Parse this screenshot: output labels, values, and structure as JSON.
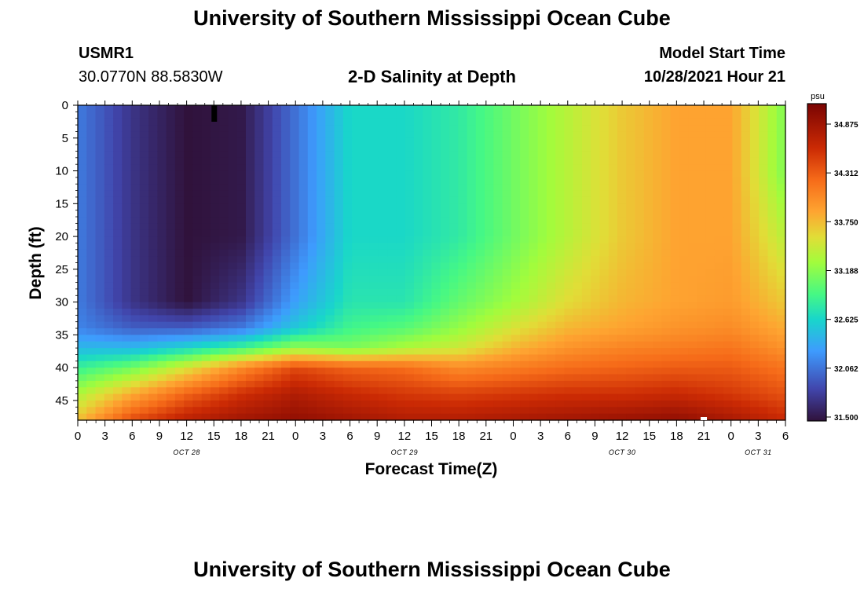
{
  "header": {
    "title": "University of Southern Mississippi Ocean Cube",
    "station": "USMR1",
    "coords": "30.0770N  88.5830W",
    "subtitle": "2-D Salinity at Depth",
    "start_label": "Model Start Time",
    "start_value": "10/28/2021 Hour 21"
  },
  "footer": {
    "title": "University of Southern Mississippi Ocean Cube"
  },
  "chart_data": {
    "type": "heatmap",
    "title": "2-D Salinity at Depth",
    "xlabel": "Forecast Time(Z)",
    "ylabel": "Depth (ft)",
    "x_ticks": [
      "0",
      "3",
      "6",
      "9",
      "12",
      "15",
      "18",
      "21",
      "0",
      "3",
      "6",
      "9",
      "12",
      "15",
      "18",
      "21",
      "0",
      "3",
      "6",
      "9",
      "12",
      "15",
      "18",
      "21",
      "0",
      "3",
      "6"
    ],
    "date_labels": [
      {
        "label": "OCT 28",
        "tick_index": 4
      },
      {
        "label": "OCT 29",
        "tick_index": 12
      },
      {
        "label": "OCT 30",
        "tick_index": 20
      },
      {
        "label": "OCT 31",
        "tick_index": 25
      }
    ],
    "y_ticks": [
      0,
      5,
      10,
      15,
      20,
      25,
      30,
      35,
      40,
      45
    ],
    "ylim": [
      0,
      48
    ],
    "colorbar": {
      "unit": "psu",
      "ticks": [
        "34.875",
        "34.312",
        "33.750",
        "33.188",
        "32.625",
        "32.062",
        "31.500"
      ],
      "range": [
        31.5,
        35.2
      ]
    },
    "x_hours": [
      0,
      6,
      12,
      18,
      24,
      30,
      36,
      42,
      48,
      54,
      60,
      66,
      72,
      78
    ],
    "depths_ft": [
      0,
      10,
      20,
      30,
      34,
      37,
      40,
      44,
      48
    ],
    "salinity_grid": [
      [
        32.15,
        31.75,
        31.5,
        31.55,
        32.1,
        32.7,
        32.7,
        32.85,
        33.15,
        33.45,
        33.75,
        33.95,
        33.95,
        33.2
      ],
      [
        32.15,
        31.75,
        31.5,
        31.55,
        32.1,
        32.7,
        32.7,
        32.85,
        33.15,
        33.45,
        33.75,
        33.95,
        33.95,
        33.2
      ],
      [
        32.15,
        31.75,
        31.5,
        31.55,
        32.1,
        32.7,
        32.7,
        32.85,
        33.15,
        33.45,
        33.75,
        33.95,
        33.95,
        33.45
      ],
      [
        32.15,
        31.75,
        31.5,
        31.75,
        32.35,
        32.8,
        32.8,
        33.1,
        33.35,
        33.65,
        33.85,
        33.95,
        34.0,
        33.75
      ],
      [
        32.2,
        32.0,
        32.0,
        32.15,
        32.6,
        32.95,
        33.05,
        33.3,
        33.6,
        33.85,
        33.95,
        34.05,
        34.1,
        33.9
      ],
      [
        32.5,
        32.5,
        32.7,
        32.95,
        33.3,
        33.2,
        33.4,
        33.55,
        33.85,
        34.05,
        34.15,
        34.2,
        34.25,
        34.05
      ],
      [
        32.9,
        33.15,
        33.6,
        34.1,
        34.5,
        34.35,
        34.3,
        34.1,
        34.2,
        34.3,
        34.35,
        34.4,
        34.4,
        34.25
      ],
      [
        33.4,
        33.9,
        34.35,
        34.65,
        34.85,
        34.7,
        34.6,
        34.55,
        34.6,
        34.65,
        34.65,
        34.7,
        34.6,
        34.45
      ],
      [
        33.8,
        34.5,
        34.8,
        34.95,
        35.05,
        34.95,
        34.85,
        34.85,
        34.9,
        34.95,
        35.0,
        35.05,
        34.9,
        34.7
      ]
    ]
  }
}
